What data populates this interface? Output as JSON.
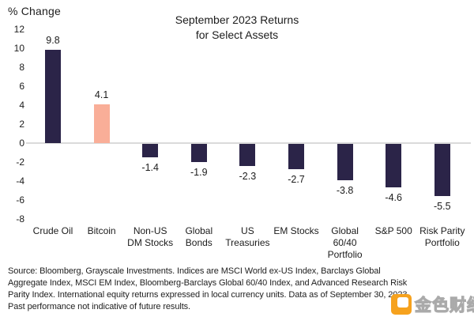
{
  "page": {
    "y_axis_title": "% Change",
    "title": "September 2023 Returns\nfor Select Assets"
  },
  "chart_data": {
    "type": "bar",
    "title": "September 2023 Returns for Select Assets",
    "xlabel": "",
    "ylabel": "% Change",
    "categories": [
      "Crude Oil",
      "Bitcoin",
      "Non-US DM Stocks",
      "Global Bonds",
      "US Treasuries",
      "EM Stocks",
      "Global 60/40 Portfolio",
      "S&P 500",
      "Risk Parity Portfolio"
    ],
    "category_labels": [
      "Crude Oil",
      "Bitcoin",
      "Non-US\nDM Stocks",
      "Global\nBonds",
      "US\nTreasuries",
      "EM Stocks",
      "Global\n60/40\nPortfolio",
      "S&P 500",
      "Risk Parity\nPortfolio"
    ],
    "values": [
      9.8,
      4.1,
      -1.4,
      -1.9,
      -2.3,
      -2.7,
      -3.8,
      -4.6,
      -5.5
    ],
    "value_labels": [
      "9.8",
      "4.1",
      "-1.4",
      "-1.9",
      "-2.3",
      "-2.7",
      "-3.8",
      "-4.6",
      "-5.5"
    ],
    "bar_colors": [
      "#2B2448",
      "#F9AE98",
      "#2B2448",
      "#2B2448",
      "#2B2448",
      "#2B2448",
      "#2B2448",
      "#2B2448",
      "#2B2448"
    ],
    "y_ticks": [
      12,
      10,
      8,
      6,
      4,
      2,
      0,
      -2,
      -4,
      -6,
      -8
    ],
    "ylim": [
      -8,
      12
    ],
    "grid": false,
    "legend": null,
    "zero_line_color": "#DADADA"
  },
  "footer": {
    "lines": [
      "Source: Bloomberg, Grayscale Investments. Indices are MSCI World ex-US Index, Barclays Global",
      "Aggregate Index, MSCI EM Index, Bloomberg-Barclays Global 60/40 Index, and Advanced Research Risk",
      "Parity Index. International equity returns expressed in local currency units. Data as of September 30, 2023.",
      "Past performance not indicative of future results."
    ]
  },
  "watermark": {
    "text": "金色财经",
    "logo_color": "#F6A21E"
  },
  "colors": {
    "bar_default": "#2B2448",
    "bar_highlight": "#F9AE98",
    "text": "#1C1C1C"
  }
}
